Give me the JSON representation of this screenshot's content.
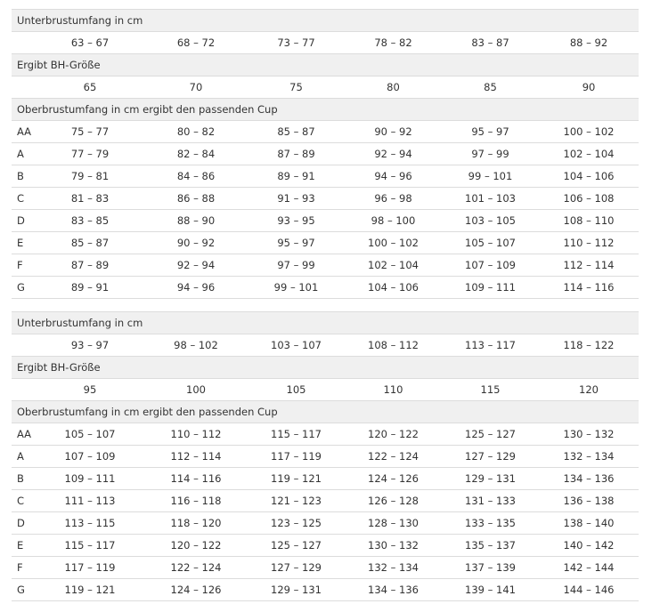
{
  "tables": [
    {
      "under_label": "Unterbrustumfang in cm",
      "under_values": [
        "63 – 67",
        "68 – 72",
        "73 – 77",
        "78 – 82",
        "83 – 87",
        "88 – 92"
      ],
      "size_label": "Ergibt BH-Größe",
      "sizes": [
        65,
        70,
        75,
        80,
        85,
        90
      ],
      "cup_label": "Oberbrustumfang in cm ergibt den passenden Cup",
      "rows": [
        [
          "AA",
          "75 – 77",
          "80 – 82",
          "85 – 87",
          "90 – 92",
          "95 – 97",
          "100 – 102"
        ],
        [
          "A",
          "77 – 79",
          "82 – 84",
          "87 – 89",
          "92 – 94",
          "97 – 99",
          "102 – 104"
        ],
        [
          "B",
          "79 – 81",
          "84 – 86",
          "89 – 91",
          "94 – 96",
          "99 – 101",
          "104 – 106"
        ],
        [
          "C",
          "81 – 83",
          "86 – 88",
          "91 – 93",
          "96 – 98",
          "101 – 103",
          "106 – 108"
        ],
        [
          "D",
          "83 – 85",
          "88 – 90",
          "93 – 95",
          "98 – 100",
          "103 – 105",
          "108 – 110"
        ],
        [
          "E",
          "85 – 87",
          "90 – 92",
          "95 – 97",
          "100 – 102",
          "105 – 107",
          "110 – 112"
        ],
        [
          "F",
          "87 – 89",
          "92 – 94",
          "97 – 99",
          "102 – 104",
          "107 – 109",
          "112 – 114"
        ],
        [
          "G",
          "89 – 91",
          "94 – 96",
          "99 – 101",
          "104 – 106",
          "109 – 111",
          "114 – 116"
        ]
      ]
    },
    {
      "under_label": "Unterbrustumfang in cm",
      "under_values": [
        "93 – 97",
        "98 – 102",
        "103 – 107",
        "108 – 112",
        "113 – 117",
        "118 – 122"
      ],
      "size_label": "Ergibt BH-Größe",
      "sizes": [
        95,
        100,
        105,
        110,
        115,
        120
      ],
      "cup_label": "Oberbrustumfang in cm ergibt den passenden Cup",
      "rows": [
        [
          "AA",
          "105 – 107",
          "110 – 112",
          "115 – 117",
          "120 – 122",
          "125 – 127",
          "130 – 132"
        ],
        [
          "A",
          "107 – 109",
          "112 – 114",
          "117 – 119",
          "122 – 124",
          "127 – 129",
          "132 – 134"
        ],
        [
          "B",
          "109 – 111",
          "114 – 116",
          "119 – 121",
          "124 – 126",
          "129 – 131",
          "134 – 136"
        ],
        [
          "C",
          "111 – 113",
          "116 – 118",
          "121 – 123",
          "126 – 128",
          "131 – 133",
          "136 – 138"
        ],
        [
          "D",
          "113 – 115",
          "118 – 120",
          "123 – 125",
          "128 – 130",
          "133 – 135",
          "138 – 140"
        ],
        [
          "E",
          "115 – 117",
          "120 – 122",
          "125 – 127",
          "130 – 132",
          "135 – 137",
          "140 – 142"
        ],
        [
          "F",
          "117 – 119",
          "122 – 124",
          "127 – 129",
          "132 – 134",
          "137 – 139",
          "142 – 144"
        ],
        [
          "G",
          "119 – 121",
          "124 – 126",
          "129 – 131",
          "134 – 136",
          "139 – 141",
          "144 – 146"
        ]
      ]
    }
  ]
}
